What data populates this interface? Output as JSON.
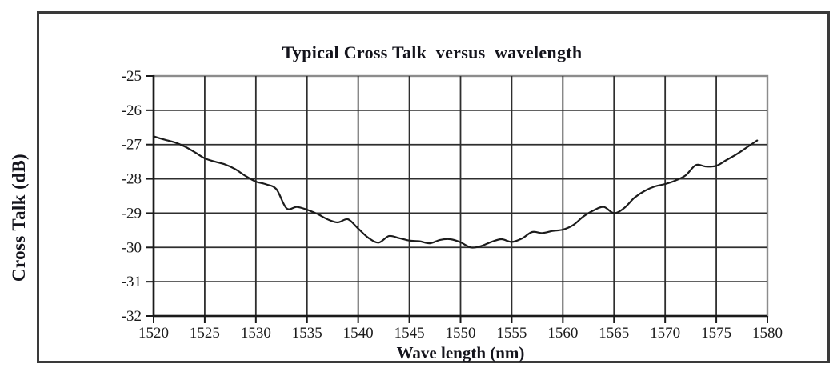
{
  "window": {
    "background_color": "#ffffff",
    "figure_border_color": "#3a3a3a"
  },
  "chart_data": {
    "type": "line",
    "title": "Typical Cross Talk  versus  wavelength",
    "xlabel": "Wave length (nm)",
    "ylabel": "Cross Talk (dB)",
    "xlim": [
      1520,
      1580
    ],
    "ylim": [
      -32,
      -25
    ],
    "x_ticks": [
      1520,
      1525,
      1530,
      1535,
      1540,
      1545,
      1550,
      1555,
      1560,
      1565,
      1570,
      1575,
      1580
    ],
    "y_ticks": [
      -25,
      -26,
      -27,
      -28,
      -29,
      -30,
      -31,
      -32
    ],
    "grid": true,
    "legend": false,
    "colors": {
      "grid": "#2e2e2e",
      "axis": "#1a1a1a",
      "plot_border": "#8c8c8c",
      "text": "#1b1b1b",
      "line": "#1c1c1c"
    },
    "series": [
      {
        "x": [
          1520,
          1521,
          1522,
          1523,
          1524,
          1525,
          1526,
          1527,
          1528,
          1529,
          1530,
          1531,
          1532,
          1533,
          1534,
          1535,
          1536,
          1537,
          1538,
          1539,
          1540,
          1541,
          1542,
          1543,
          1544,
          1545,
          1546,
          1547,
          1548,
          1549,
          1550,
          1551,
          1552,
          1553,
          1554,
          1555,
          1556,
          1557,
          1558,
          1559,
          1560,
          1561,
          1562,
          1563,
          1564,
          1565,
          1566,
          1567,
          1568,
          1569,
          1570,
          1571,
          1572,
          1573,
          1574,
          1575,
          1576,
          1577,
          1578,
          1579
        ],
        "y": [
          -26.76,
          -26.85,
          -26.93,
          -27.05,
          -27.22,
          -27.4,
          -27.5,
          -27.58,
          -27.72,
          -27.92,
          -28.08,
          -28.16,
          -28.3,
          -28.86,
          -28.82,
          -28.9,
          -29.02,
          -29.18,
          -29.27,
          -29.18,
          -29.45,
          -29.72,
          -29.86,
          -29.67,
          -29.73,
          -29.8,
          -29.82,
          -29.88,
          -29.78,
          -29.76,
          -29.85,
          -30.0,
          -29.96,
          -29.84,
          -29.76,
          -29.84,
          -29.74,
          -29.55,
          -29.58,
          -29.52,
          -29.48,
          -29.35,
          -29.1,
          -28.92,
          -28.82,
          -29.0,
          -28.85,
          -28.55,
          -28.35,
          -28.22,
          -28.15,
          -28.05,
          -27.9,
          -27.6,
          -27.64,
          -27.62,
          -27.45,
          -27.28,
          -27.08,
          -26.88
        ]
      }
    ]
  }
}
